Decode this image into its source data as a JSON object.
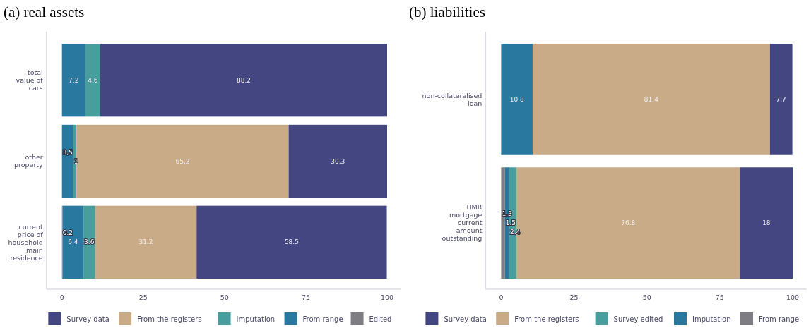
{
  "chart_data": [
    {
      "type": "bar",
      "orientation": "horizontal",
      "stacked": true,
      "title": "(a) real assets",
      "categories": [
        "total value of cars",
        "other property",
        "current price of household main residence"
      ],
      "xlim": [
        0,
        100
      ],
      "xticks": [
        0,
        25,
        50,
        75,
        100
      ],
      "legend": "bottom",
      "series": [
        {
          "name": "Edited",
          "color": "#7e7d84",
          "values": [
            null,
            null,
            0.2
          ],
          "value_labels": [
            null,
            null,
            "0.2"
          ]
        },
        {
          "name": "From range",
          "color": "#2878a0",
          "values": [
            7.2,
            3.5,
            6.4
          ],
          "value_labels": [
            "7.2",
            "3,5",
            "6.4"
          ]
        },
        {
          "name": "Imputation",
          "color": "#489e9d",
          "values": [
            4.6,
            1,
            3.6
          ],
          "value_labels": [
            "4.6",
            "1",
            "3.6"
          ]
        },
        {
          "name": "From the registers",
          "color": "#c9ab88",
          "values": [
            null,
            65.2,
            31.2
          ],
          "value_labels": [
            null,
            "65,2",
            "31.2"
          ]
        },
        {
          "name": "Survey data",
          "color": "#434680",
          "values": [
            88.2,
            30.3,
            58.5
          ],
          "value_labels": [
            "88.2",
            "30,3",
            "58.5"
          ]
        }
      ]
    },
    {
      "type": "bar",
      "orientation": "horizontal",
      "stacked": true,
      "title": "(b) liabilities",
      "categories": [
        "non-collateralised loan",
        "HMR mortgage current amount outstanding"
      ],
      "xlim": [
        0,
        100
      ],
      "xticks": [
        0,
        25,
        50,
        75,
        100
      ],
      "legend": "bottom",
      "series": [
        {
          "name": "From range",
          "color": "#7e7d84",
          "values": [
            null,
            1.3
          ],
          "value_labels": [
            null,
            "1.3"
          ]
        },
        {
          "name": "Imputation",
          "color": "#2878a0",
          "values": [
            10.8,
            1.5
          ],
          "value_labels": [
            "10.8",
            "1.5"
          ]
        },
        {
          "name": "Survey edited",
          "color": "#489e9d",
          "values": [
            null,
            2.4
          ],
          "value_labels": [
            null,
            "2.4"
          ]
        },
        {
          "name": "From the registers",
          "color": "#c9ab88",
          "values": [
            81.4,
            76.8
          ],
          "value_labels": [
            "81.4",
            "76.8"
          ]
        },
        {
          "name": "Survey data",
          "color": "#434680",
          "values": [
            7.7,
            18
          ],
          "value_labels": [
            "7.7",
            "18"
          ]
        }
      ]
    }
  ]
}
